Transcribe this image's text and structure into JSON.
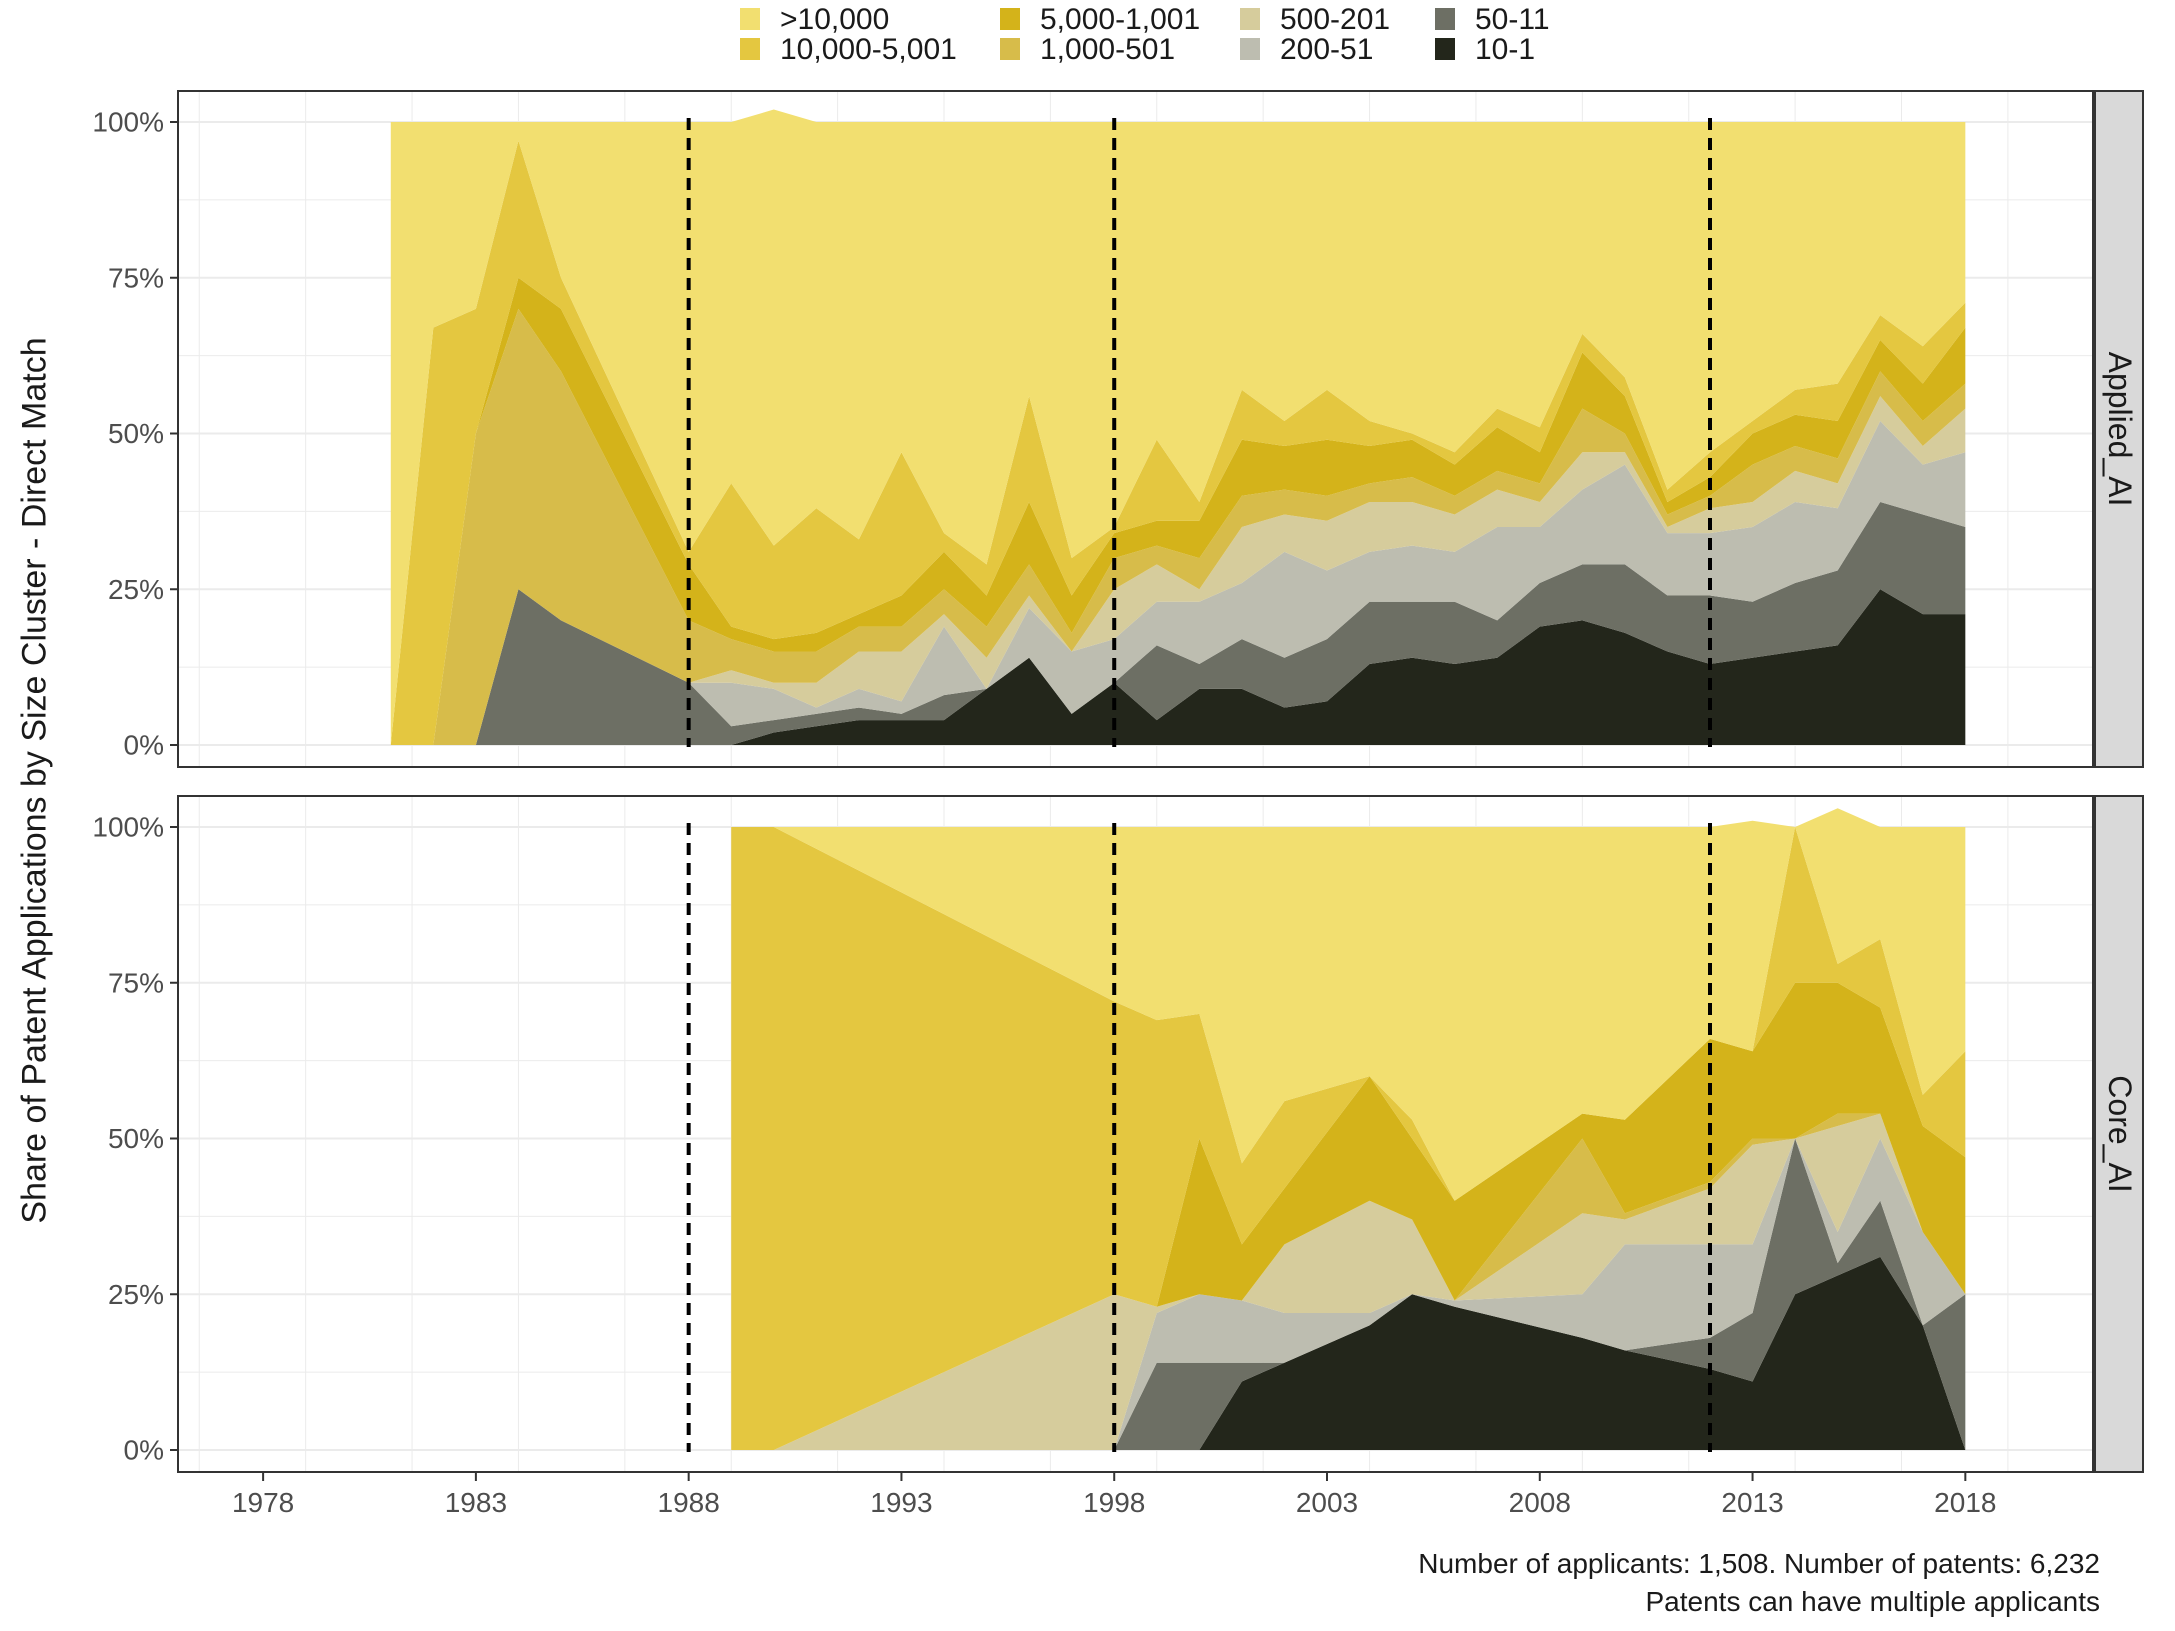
{
  "caption": {
    "line1": "Number of applicants: 1,508. Number of patents: 6,232",
    "line2": "Patents can have multiple applicants"
  },
  "chart_data": {
    "type": "area",
    "stacked": true,
    "ylabel": "Share of Patent Applications by Size Cluster - Direct Match",
    "xlabel": "",
    "xlim": [
      1976,
      2021
    ],
    "x_ticks": [
      1978,
      1983,
      1988,
      1993,
      1998,
      2003,
      2008,
      2013,
      2018
    ],
    "ylim": [
      0,
      1
    ],
    "y_ticks": [
      "0%",
      "25%",
      "50%",
      "75%",
      "100%"
    ],
    "grid": true,
    "legend": {
      "position": "top",
      "order": [
        ">10,000",
        "10,000-5,001",
        "5,000-1,001",
        "1,000-501",
        "500-201",
        "200-51",
        "50-11",
        "10-1"
      ]
    },
    "colors": {
      ">10,000": "#f2df70",
      "10,000-5,001": "#e4c740",
      "5,000-1,001": "#d4b31a",
      "1,000-501": "#d7bc4a",
      "500-201": "#d6cc9c",
      "200-51": "#bdbdb0",
      "50-11": "#6d6f64",
      "10-1": "#23261b"
    },
    "vlines": [
      1988,
      1998,
      2012
    ],
    "panels": [
      {
        "name": "Applied_AI",
        "x": [
          1981,
          1982,
          1983,
          1984,
          1985,
          1988,
          1989,
          1990,
          1991,
          1992,
          1993,
          1994,
          1995,
          1996,
          1997,
          1998,
          1999,
          2000,
          2001,
          2002,
          2003,
          2004,
          2005,
          2006,
          2007,
          2008,
          2009,
          2010,
          2011,
          2012,
          2013,
          2014,
          2015,
          2016,
          2017,
          2018
        ],
        "series": [
          {
            "name": "10-1",
            "values": [
              0,
              0,
              0,
              0,
              0,
              0,
              0,
              0.02,
              0.03,
              0.04,
              0.04,
              0.04,
              0.09,
              0.14,
              0.05,
              0.1,
              0.04,
              0.09,
              0.09,
              0.06,
              0.07,
              0.13,
              0.14,
              0.13,
              0.14,
              0.19,
              0.2,
              0.18,
              0.15,
              0.13,
              0.14,
              0.15,
              0.16,
              0.25,
              0.21,
              0.21
            ]
          },
          {
            "name": "50-11",
            "values": [
              0,
              0,
              0,
              0.25,
              0.2,
              0.1,
              0.03,
              0.02,
              0.02,
              0.02,
              0.01,
              0.04,
              0,
              0,
              0,
              0,
              0.12,
              0.04,
              0.08,
              0.08,
              0.1,
              0.1,
              0.09,
              0.1,
              0.06,
              0.07,
              0.09,
              0.11,
              0.09,
              0.11,
              0.09,
              0.11,
              0.12,
              0.14,
              0.16,
              0.14
            ]
          },
          {
            "name": "200-51",
            "values": [
              0,
              0,
              0,
              0,
              0,
              0,
              0.07,
              0.05,
              0.01,
              0.03,
              0.02,
              0.11,
              0,
              0.08,
              0.1,
              0.07,
              0.07,
              0.1,
              0.09,
              0.17,
              0.11,
              0.08,
              0.09,
              0.08,
              0.15,
              0.09,
              0.12,
              0.16,
              0.1,
              0.1,
              0.12,
              0.13,
              0.1,
              0.13,
              0.08,
              0.12
            ]
          },
          {
            "name": "500-201",
            "values": [
              0,
              0,
              0,
              0,
              0,
              0,
              0.02,
              0.01,
              0.04,
              0.06,
              0.08,
              0.02,
              0.05,
              0.02,
              0,
              0.08,
              0.06,
              0.02,
              0.09,
              0.06,
              0.08,
              0.08,
              0.07,
              0.06,
              0.06,
              0.04,
              0.06,
              0.02,
              0.01,
              0.04,
              0.04,
              0.05,
              0.04,
              0.04,
              0.03,
              0.07
            ]
          },
          {
            "name": "1,000-501",
            "values": [
              0,
              0,
              0.5,
              0.45,
              0.4,
              0.1,
              0.05,
              0.05,
              0.05,
              0.04,
              0.04,
              0.04,
              0.05,
              0.05,
              0.03,
              0.05,
              0.03,
              0.05,
              0.05,
              0.04,
              0.04,
              0.03,
              0.04,
              0.03,
              0.03,
              0.03,
              0.07,
              0.03,
              0.02,
              0.02,
              0.06,
              0.04,
              0.04,
              0.04,
              0.04,
              0.04
            ]
          },
          {
            "name": "5,000-1,001",
            "values": [
              0,
              0,
              0,
              0.05,
              0.1,
              0.09,
              0.02,
              0.02,
              0.03,
              0.02,
              0.05,
              0.06,
              0.05,
              0.1,
              0.06,
              0.04,
              0.04,
              0.06,
              0.09,
              0.07,
              0.09,
              0.06,
              0.06,
              0.05,
              0.07,
              0.05,
              0.09,
              0.06,
              0.02,
              0.03,
              0.05,
              0.05,
              0.06,
              0.05,
              0.06,
              0.09
            ]
          },
          {
            "name": "10,000-5,001",
            "values": [
              0,
              0.67,
              0.2,
              0.22,
              0.05,
              0.02,
              0.23,
              0.15,
              0.2,
              0.12,
              0.23,
              0.03,
              0.05,
              0.17,
              0.06,
              0.01,
              0.13,
              0.03,
              0.08,
              0.04,
              0.08,
              0.04,
              0.01,
              0.02,
              0.03,
              0.04,
              0.03,
              0.03,
              0.02,
              0.04,
              0.02,
              0.04,
              0.06,
              0.04,
              0.06,
              0.04
            ]
          },
          {
            "name": ">10,000",
            "values": [
              1,
              0.33,
              0.3,
              0.03,
              0.25,
              0.69,
              0.58,
              0.7,
              0.62,
              0.67,
              0.53,
              0.66,
              0.71,
              0.44,
              0.7,
              0.65,
              0.51,
              0.61,
              0.43,
              0.48,
              0.43,
              0.48,
              0.5,
              0.53,
              0.46,
              0.49,
              0.34,
              0.41,
              0.59,
              0.53,
              0.48,
              0.43,
              0.42,
              0.31,
              0.36,
              0.29
            ]
          }
        ]
      },
      {
        "name": "Core_AI",
        "x": [
          1989,
          1990,
          1998,
          1999,
          2000,
          2001,
          2002,
          2004,
          2005,
          2006,
          2009,
          2010,
          2012,
          2013,
          2014,
          2015,
          2016,
          2017,
          2018
        ],
        "series": [
          {
            "name": "10-1",
            "values": [
              0,
              0,
              0,
              0,
              0,
              0.11,
              0.14,
              0.2,
              0.25,
              0.23,
              0.18,
              0.16,
              0.13,
              0.11,
              0.25,
              0.28,
              0.31,
              0.2,
              0
            ]
          },
          {
            "name": "50-11",
            "values": [
              0,
              0,
              0,
              0.14,
              0.14,
              0.03,
              0,
              0,
              0,
              0,
              0,
              0,
              0.05,
              0.11,
              0.25,
              0.02,
              0.09,
              0,
              0.25
            ]
          },
          {
            "name": "200-51",
            "values": [
              0,
              0,
              0,
              0.08,
              0.11,
              0.1,
              0.08,
              0.02,
              0,
              0.01,
              0.07,
              0.17,
              0.15,
              0.11,
              0,
              0.05,
              0.1,
              0.15,
              0
            ]
          },
          {
            "name": "500-201",
            "values": [
              0,
              0,
              0.25,
              0.01,
              0,
              0,
              0.11,
              0.18,
              0.12,
              0,
              0.13,
              0.04,
              0.09,
              0.16,
              0,
              0.17,
              0.04,
              0,
              0
            ]
          },
          {
            "name": "1,000-501",
            "values": [
              0,
              0,
              0,
              0,
              0,
              0,
              0,
              0,
              0,
              0,
              0.12,
              0.01,
              0.01,
              0.01,
              0,
              0.02,
              0,
              0,
              0
            ]
          },
          {
            "name": "5,000-1,001",
            "values": [
              0,
              0,
              0,
              0,
              0.25,
              0.09,
              0.09,
              0.2,
              0.13,
              0.16,
              0.04,
              0.15,
              0.23,
              0.14,
              0.25,
              0.21,
              0.17,
              0.17,
              0.22
            ]
          },
          {
            "name": "10,000-5,001",
            "values": [
              1,
              1,
              0.47,
              0.46,
              0.2,
              0.13,
              0.14,
              0,
              0.03,
              0,
              0,
              0,
              0,
              0,
              0.25,
              0.03,
              0.11,
              0.05,
              0.17
            ]
          },
          {
            "name": ">10,000",
            "values": [
              0,
              0,
              0.28,
              0.31,
              0.3,
              0.54,
              0.44,
              0.4,
              0.47,
              0.6,
              0.46,
              0.47,
              0.34,
              0.37,
              0,
              0.25,
              0.18,
              0.43,
              0.36
            ]
          }
        ]
      }
    ]
  }
}
